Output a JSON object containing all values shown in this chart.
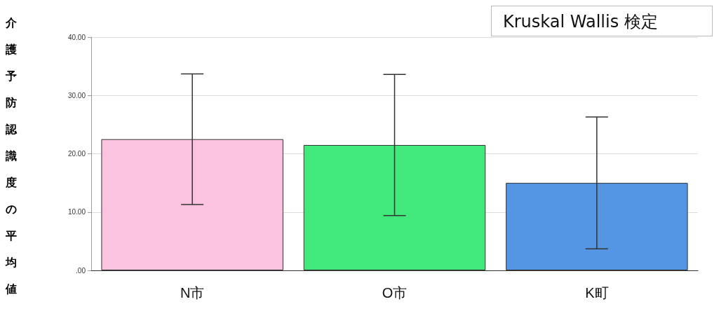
{
  "chart_data": {
    "type": "bar",
    "ylabel": "介護予防認識度の平均値",
    "annotations": [
      "Kruskal Wallis 検定"
    ],
    "categories": [
      "N市",
      "O市",
      "K町"
    ],
    "values": [
      22.5,
      21.5,
      15.0
    ],
    "colors": [
      "#fcc3e0",
      "#41e97c",
      "#5596e4"
    ],
    "errors": [
      [
        11.3,
        33.7
      ],
      [
        9.4,
        33.6
      ],
      [
        3.7,
        26.3
      ]
    ],
    "ylim": [
      0,
      40
    ],
    "yticks": [
      {
        "value": 0,
        "label": ".00"
      },
      {
        "value": 10,
        "label": "10.00"
      },
      {
        "value": 20,
        "label": "20.00"
      },
      {
        "value": 30,
        "label": "30.00"
      },
      {
        "value": 40,
        "label": "40.00"
      }
    ],
    "grid": "y"
  }
}
